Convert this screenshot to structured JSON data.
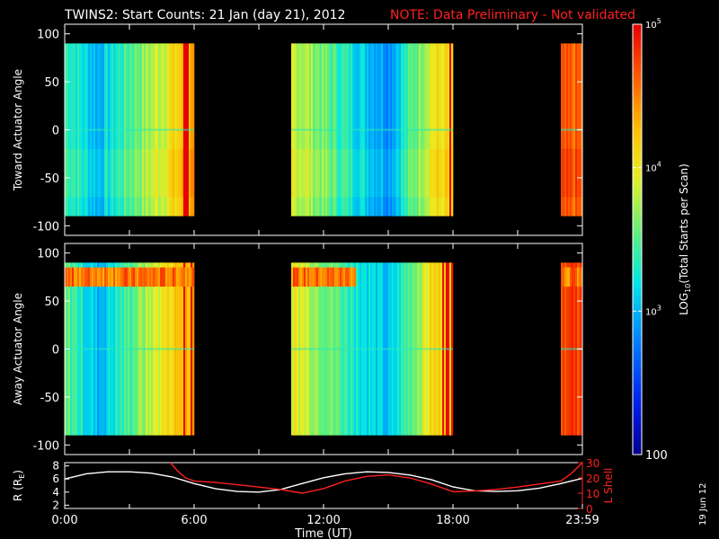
{
  "title": "TWINS2: Start Counts: 21 Jan (day  21), 2012",
  "note": "NOTE: Data Preliminary - Not validated",
  "colors": {
    "background": "#000000",
    "axes": "#ffffff",
    "note": "#ff2020",
    "r_line": "#ffffff",
    "l_shell_line": "#ff2020"
  },
  "colorbar": {
    "label": "LOG10(Total Starts per Scan)",
    "label_main": "LOG",
    "label_sub": "10",
    "label_rest": "(Total Starts per Scan)",
    "ticks": [
      {
        "value": 100,
        "text": "100",
        "sub": ""
      },
      {
        "value": 1000,
        "text": "10",
        "sub": "3"
      },
      {
        "value": 10000,
        "text": "10",
        "sub": "4"
      },
      {
        "value": 100000,
        "text": "10",
        "sub": "5"
      }
    ],
    "range": [
      100,
      100000
    ],
    "scale": "log"
  },
  "footer": {
    "date_stamp": "19 Jun 12"
  },
  "chart_data": [
    {
      "type": "heatmap",
      "ylabel": "Toward Actuator Angle",
      "ylim": [
        -110,
        110
      ],
      "yticks": [
        100,
        50,
        0,
        -50,
        -100
      ],
      "xlim": [
        0,
        24
      ],
      "x_tick_hours": [
        0,
        3,
        6,
        9,
        12,
        15,
        18,
        21,
        24
      ],
      "data_angle_range": [
        -90,
        90
      ],
      "data_intervals": [
        {
          "start": "0:00",
          "end": "6:00",
          "start_h": 0.0,
          "end_h": 6.0
        },
        {
          "start": "10:30",
          "end": "18:00",
          "start_h": 10.5,
          "end_h": 18.0
        },
        {
          "start": "23:00",
          "end": "23:59",
          "start_h": 23.0,
          "end_h": 24.0
        }
      ],
      "representative_log10_counts": [
        {
          "hour": 0.2,
          "value": 3.4
        },
        {
          "hour": 1.5,
          "value": 3.0
        },
        {
          "hour": 3.0,
          "value": 3.5
        },
        {
          "hour": 4.5,
          "value": 3.9
        },
        {
          "hour": 5.7,
          "value": 4.3
        },
        {
          "hour": 11.0,
          "value": 3.8
        },
        {
          "hour": 13.5,
          "value": 3.2
        },
        {
          "hour": 15.0,
          "value": 2.9
        },
        {
          "hour": 17.0,
          "value": 4.0
        },
        {
          "hour": 23.5,
          "value": 4.6
        }
      ]
    },
    {
      "type": "heatmap",
      "ylabel": "Away Actuator Angle",
      "ylim": [
        -110,
        110
      ],
      "yticks": [
        100,
        50,
        0,
        -50,
        -100
      ],
      "xlim": [
        0,
        24
      ],
      "x_tick_hours": [
        0,
        3,
        6,
        9,
        12,
        15,
        18,
        21,
        24
      ],
      "data_angle_range": [
        -90,
        90
      ],
      "data_intervals": [
        {
          "start": "0:00",
          "end": "6:00",
          "start_h": 0.0,
          "end_h": 6.0
        },
        {
          "start": "10:30",
          "end": "18:00",
          "start_h": 10.5,
          "end_h": 18.0
        },
        {
          "start": "23:00",
          "end": "23:59",
          "start_h": 23.0,
          "end_h": 24.0
        }
      ],
      "high_count_band_angle": [
        65,
        85
      ],
      "representative_log10_counts": [
        {
          "hour": 0.2,
          "value": 3.5
        },
        {
          "hour": 1.5,
          "value": 3.0
        },
        {
          "hour": 3.0,
          "value": 3.5
        },
        {
          "hour": 4.5,
          "value": 4.0
        },
        {
          "hour": 5.7,
          "value": 4.4
        },
        {
          "hour": 11.0,
          "value": 3.9
        },
        {
          "hour": 13.5,
          "value": 3.3
        },
        {
          "hour": 15.0,
          "value": 3.0
        },
        {
          "hour": 17.0,
          "value": 4.1
        },
        {
          "hour": 23.5,
          "value": 4.8
        }
      ]
    },
    {
      "type": "line",
      "ylabel": "R (RE)",
      "ylabel_main": "R (R",
      "ylabel_sub": "E",
      "ylabel_end": ")",
      "y2label": "L Shell",
      "ylim": [
        1.5,
        8.5
      ],
      "y2lim": [
        0,
        30
      ],
      "yticks": [
        2,
        4,
        6,
        8
      ],
      "y2ticks": [
        0,
        10,
        20,
        30
      ],
      "xlim": [
        0,
        24
      ],
      "xlabel": "Time (UT)",
      "xticklabels": [
        {
          "hour": 0,
          "text": "0:00"
        },
        {
          "hour": 6,
          "text": "6:00"
        },
        {
          "hour": 12,
          "text": "12:00"
        },
        {
          "hour": 18,
          "text": "18:00"
        },
        {
          "hour": 24,
          "text": "23:59"
        }
      ],
      "series": [
        {
          "key": "R",
          "x": [
            0,
            1,
            2,
            3,
            4,
            5,
            6,
            7,
            8,
            9,
            10,
            11,
            12,
            13,
            14,
            15,
            16,
            17,
            18,
            19,
            20,
            21,
            22,
            23,
            24
          ],
          "y": [
            6.0,
            6.8,
            7.1,
            7.1,
            6.9,
            6.3,
            5.3,
            4.5,
            4.1,
            4.0,
            4.4,
            5.3,
            6.2,
            6.8,
            7.1,
            7.0,
            6.6,
            5.9,
            4.8,
            4.2,
            4.1,
            4.2,
            4.6,
            5.3,
            6.1
          ]
        },
        {
          "key": "L",
          "axis": "y2",
          "x": [
            4.9,
            5.2,
            5.6,
            6.0,
            7,
            8,
            9,
            10,
            11,
            12,
            13,
            14,
            15,
            16,
            17,
            18,
            19,
            20,
            21,
            22,
            23,
            23.5,
            24
          ],
          "y": [
            30,
            25,
            20,
            18,
            17,
            15.5,
            14,
            12.5,
            10,
            13,
            18,
            21,
            22,
            20,
            16,
            11,
            11.5,
            12.5,
            14,
            16,
            18,
            23,
            30
          ]
        }
      ]
    }
  ]
}
